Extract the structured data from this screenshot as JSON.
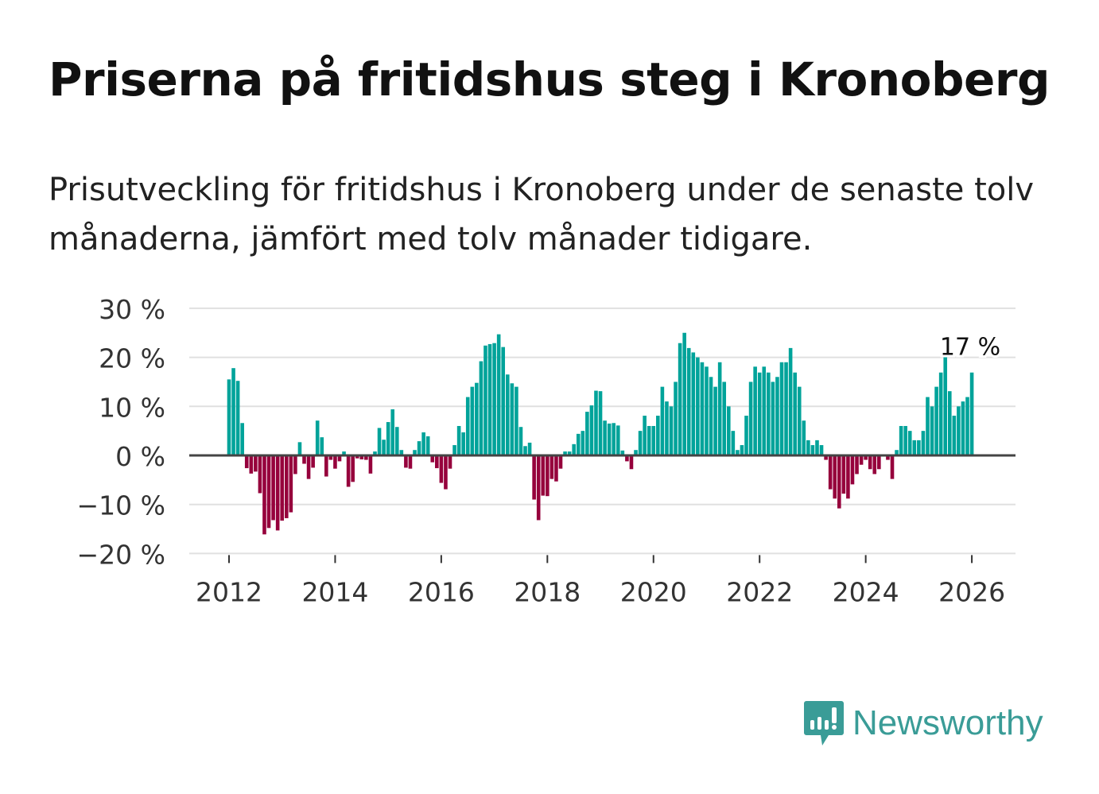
{
  "title": "Priserna på fritidshus steg i Kronoberg",
  "subtitle": "Prisutveckling för fritidshus i Kronoberg under de senaste tolv månaderna, jämfört med tolv månader tidigare.",
  "logo": {
    "name": "Newsworthy",
    "color": "#3a9c97"
  },
  "chart_data": {
    "type": "bar",
    "title": "Priserna på fritidshus steg i Kronoberg",
    "xlabel": "",
    "ylabel": "",
    "start": "2012-01",
    "frequency": "monthly",
    "ylim": [
      -20,
      30
    ],
    "yticks": [
      30,
      20,
      10,
      0,
      -10,
      -20
    ],
    "ytick_labels": [
      "30 %",
      "20 %",
      "10 %",
      "0 %",
      "−10 %",
      "−20 %"
    ],
    "xticks": [
      2012,
      2014,
      2016,
      2018,
      2020,
      2022,
      2024,
      2026
    ],
    "xtick_labels": [
      "2012",
      "2014",
      "2016",
      "2018",
      "2020",
      "2022",
      "2024",
      "2026"
    ],
    "annotation": "17 %",
    "grid": true,
    "colors": {
      "positive": "#00a39a",
      "negative": "#96003c",
      "grid": "#e0e0e0",
      "zero": "#444444"
    },
    "values": [
      15.5,
      17.8,
      15.2,
      6.6,
      -2.6,
      -3.7,
      -3.3,
      -7.7,
      -16.1,
      -14.8,
      -13.2,
      -15.3,
      -13.3,
      -12.8,
      -11.6,
      -3.8,
      2.7,
      -1.7,
      -4.8,
      -2.5,
      7.1,
      3.7,
      -4.3,
      -0.9,
      -2.7,
      -1.2,
      0.8,
      -6.4,
      -5.4,
      -0.6,
      -0.8,
      -0.9,
      -3.7,
      0.8,
      5.6,
      3.2,
      6.8,
      9.4,
      5.8,
      1.1,
      -2.5,
      -2.7,
      1.1,
      2.9,
      4.7,
      3.9,
      -1.4,
      -2.6,
      -5.6,
      -6.9,
      -2.7,
      2.1,
      6.0,
      4.7,
      11.9,
      14.0,
      14.8,
      19.2,
      22.4,
      22.7,
      22.9,
      24.7,
      22.1,
      16.5,
      14.7,
      14.0,
      5.8,
      1.9,
      2.6,
      -9.0,
      -13.2,
      -8.2,
      -8.3,
      -4.8,
      -5.3,
      -2.7,
      0.8,
      0.8,
      2.3,
      4.4,
      5.0,
      8.9,
      10.2,
      13.2,
      13.1,
      7.1,
      6.5,
      6.6,
      6.1,
      1.0,
      -1.2,
      -2.8,
      1.1,
      5.0,
      8.1,
      6.0,
      6.0,
      8.1,
      14.0,
      11.0,
      10.0,
      15.0,
      22.9,
      25.0,
      21.9,
      21.0,
      20.0,
      19.0,
      18.1,
      16.0,
      14.0,
      19.0,
      15.0,
      10.0,
      5.0,
      1.1,
      2.1,
      8.1,
      15.0,
      18.1,
      16.9,
      18.1,
      16.9,
      15.0,
      16.0,
      19.0,
      19.0,
      21.9,
      16.9,
      14.0,
      7.1,
      3.1,
      2.1,
      3.1,
      2.1,
      -0.9,
      -6.9,
      -8.8,
      -10.8,
      -7.8,
      -8.8,
      -5.9,
      -3.8,
      -1.9,
      -0.9,
      -2.8,
      -3.8,
      -2.8,
      0,
      -0.9,
      -4.8,
      1.1,
      6.0,
      6.0,
      5.0,
      3.1,
      3.1,
      5.0,
      11.9,
      10.0,
      14.0,
      16.9,
      21.0,
      13.1,
      8.1,
      10.0,
      11.0,
      11.9,
      16.9
    ]
  }
}
